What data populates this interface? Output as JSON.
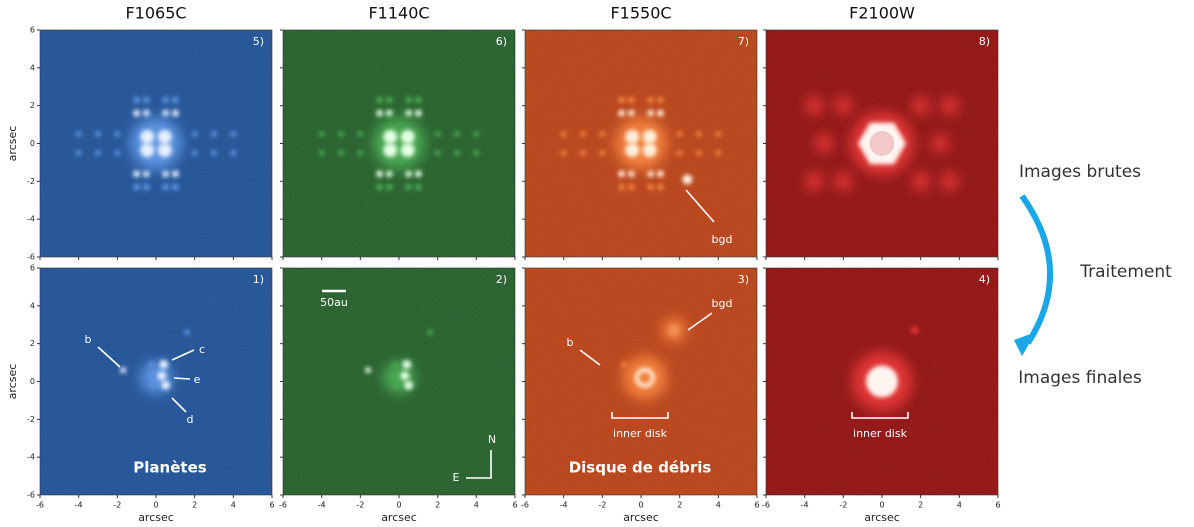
{
  "columns": [
    {
      "title": "F1065C"
    },
    {
      "title": "F1140C"
    },
    {
      "title": "F1550C"
    },
    {
      "title": "F2100W"
    }
  ],
  "panels": [
    {
      "label": "5)"
    },
    {
      "label": "6)"
    },
    {
      "label": "7)",
      "annotations": [
        "bgd"
      ]
    },
    {
      "label": "8)"
    },
    {
      "label": "1)",
      "annotations": [
        "b",
        "c",
        "e",
        "d"
      ],
      "caption": "Planètes"
    },
    {
      "label": "2)",
      "annotations": [
        "50au",
        "N",
        "E"
      ]
    },
    {
      "label": "3)",
      "annotations": [
        "b",
        "bgd",
        "inner disk"
      ],
      "caption": "Disque de débris"
    },
    {
      "label": "4)",
      "annotations": [
        "inner disk"
      ]
    }
  ],
  "axes": {
    "ticks": [
      -6,
      -4,
      -2,
      0,
      2,
      4,
      6
    ],
    "x_label": "arcsec",
    "y_label": "arcsec"
  },
  "side": {
    "top": "Images brutes",
    "middle": "Traitement",
    "bottom": "Images finales"
  }
}
